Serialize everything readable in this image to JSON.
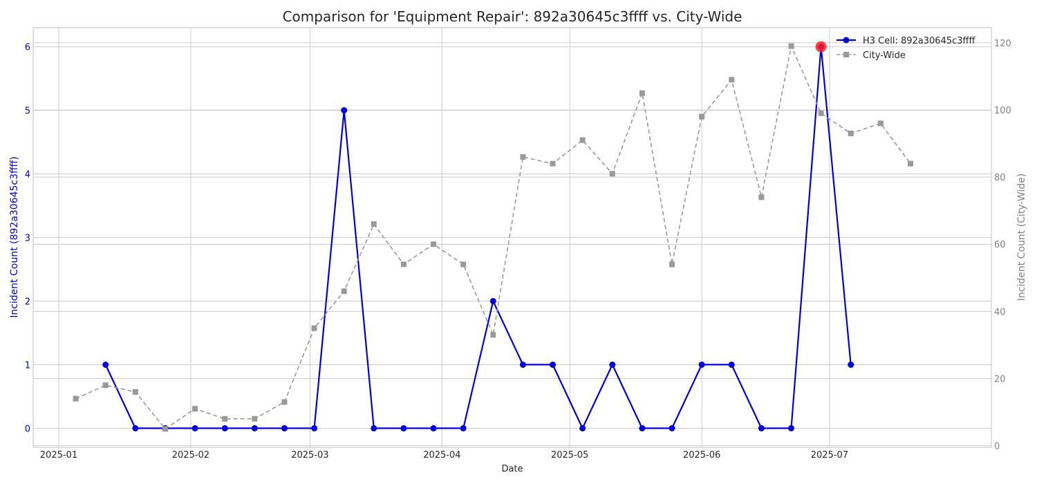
{
  "chart_data": {
    "type": "line",
    "title": "Comparison for 'Equipment Repair': 892a30645c3ffff vs. City-Wide",
    "xlabel": "Date",
    "ylabel_left": "Incident Count (892a30645c3ffff)",
    "ylabel_right": "Incident Count (City-Wide)",
    "x_range": [
      "2024-12-26",
      "2025-08-08"
    ],
    "ylim_left": [
      -0.3,
      6.3
    ],
    "ylim_right": [
      -0.5,
      124.5
    ],
    "left_ticks": [
      "0",
      "1",
      "2",
      "3",
      "4",
      "5",
      "6"
    ],
    "right_ticks": [
      "0",
      "20",
      "40",
      "60",
      "80",
      "100",
      "120"
    ],
    "x_ticks": [
      {
        "date": "2025-01-01",
        "label": "2025-01"
      },
      {
        "date": "2025-02-01",
        "label": "2025-02"
      },
      {
        "date": "2025-03-01",
        "label": "2025-03"
      },
      {
        "date": "2025-04-01",
        "label": "2025-04"
      },
      {
        "date": "2025-05-01",
        "label": "2025-05"
      },
      {
        "date": "2025-06-01",
        "label": "2025-06"
      },
      {
        "date": "2025-07-01",
        "label": "2025-07"
      }
    ],
    "grid": true,
    "legend_position": "top-right",
    "series": [
      {
        "name": "H3 Cell: 892a30645c3ffff",
        "axis": "left",
        "color": "#0000dd",
        "style": "solid",
        "marker": "circle",
        "x": [
          "2025-01-12",
          "2025-01-19",
          "2025-01-26",
          "2025-02-02",
          "2025-02-09",
          "2025-02-16",
          "2025-02-23",
          "2025-03-02",
          "2025-03-09",
          "2025-03-16",
          "2025-03-23",
          "2025-03-30",
          "2025-04-06",
          "2025-04-13",
          "2025-04-20",
          "2025-04-27",
          "2025-05-04",
          "2025-05-11",
          "2025-05-18",
          "2025-05-25",
          "2025-06-01",
          "2025-06-08",
          "2025-06-15",
          "2025-06-22",
          "2025-06-29",
          "2025-07-06"
        ],
        "y": [
          1,
          0,
          0,
          0,
          0,
          0,
          0,
          0,
          5,
          0,
          0,
          0,
          0,
          2,
          1,
          1,
          0,
          1,
          0,
          0,
          1,
          1,
          0,
          0,
          6,
          1
        ]
      },
      {
        "name": "City-Wide",
        "axis": "right",
        "color": "#999999",
        "style": "dashed",
        "marker": "square",
        "x": [
          "2025-01-05",
          "2025-01-12",
          "2025-01-19",
          "2025-01-26",
          "2025-02-02",
          "2025-02-09",
          "2025-02-16",
          "2025-02-23",
          "2025-03-02",
          "2025-03-09",
          "2025-03-16",
          "2025-03-23",
          "2025-03-30",
          "2025-04-06",
          "2025-04-13",
          "2025-04-20",
          "2025-04-27",
          "2025-05-04",
          "2025-05-11",
          "2025-05-18",
          "2025-05-25",
          "2025-06-01",
          "2025-06-08",
          "2025-06-15",
          "2025-06-22",
          "2025-06-29",
          "2025-07-06",
          "2025-07-13",
          "2025-07-20"
        ],
        "y": [
          14,
          18,
          16,
          5,
          11,
          8,
          8,
          13,
          35,
          46,
          66,
          54,
          60,
          54,
          33,
          86,
          84,
          91,
          81,
          105,
          54,
          98,
          109,
          74,
          119,
          99,
          93,
          96,
          84
        ]
      }
    ],
    "highlight": {
      "date": "2025-06-29",
      "value": 6,
      "color": "#ff2020"
    }
  }
}
